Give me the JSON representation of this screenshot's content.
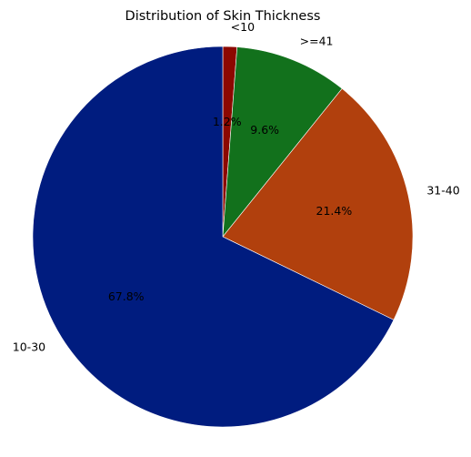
{
  "chart_data": {
    "type": "pie",
    "title": "Distribution of Skin Thickness",
    "start_angle_deg": 90,
    "direction": "clockwise",
    "slices": [
      {
        "label": "<10",
        "value": 1.2,
        "pct_label": "1.2%",
        "color": "#8c0800"
      },
      {
        "label": ">=41",
        "value": 9.6,
        "pct_label": "9.6%",
        "color": "#12711c"
      },
      {
        "label": "31-40",
        "value": 21.4,
        "pct_label": "21.4%",
        "color": "#b1400d"
      },
      {
        "label": "10-30",
        "value": 67.8,
        "pct_label": "67.8%",
        "color": "#001c7f"
      }
    ]
  }
}
